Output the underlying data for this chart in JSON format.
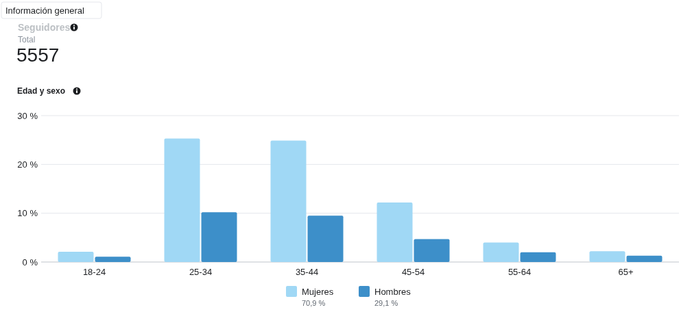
{
  "chart_data": {
    "type": "bar",
    "title": "Seguidores",
    "subtitle": "Total",
    "annotations": [
      "Información general",
      "5557",
      "Edad y sexo",
      "70,9 %",
      "29,1 %"
    ],
    "categories": [
      "18-24",
      "25-34",
      "35-44",
      "45-54",
      "55-64",
      "65+"
    ],
    "series": [
      {
        "name": "Mujeres",
        "color": "#a0d8f5",
        "values": [
          2.1,
          25.3,
          24.9,
          12.2,
          4.0,
          2.2
        ]
      },
      {
        "name": "Hombres",
        "color": "#3d8fc9",
        "values": [
          1.1,
          10.2,
          9.5,
          4.7,
          2.0,
          1.3
        ]
      }
    ],
    "ylim": [
      0,
      30
    ],
    "yticks": [
      {
        "value": 0,
        "label": "0 %"
      },
      {
        "value": 10,
        "label": "10 %"
      },
      {
        "value": 20,
        "label": "20 %"
      },
      {
        "value": 30,
        "label": "30 %"
      }
    ],
    "grid": "y",
    "legend": "bottom"
  }
}
